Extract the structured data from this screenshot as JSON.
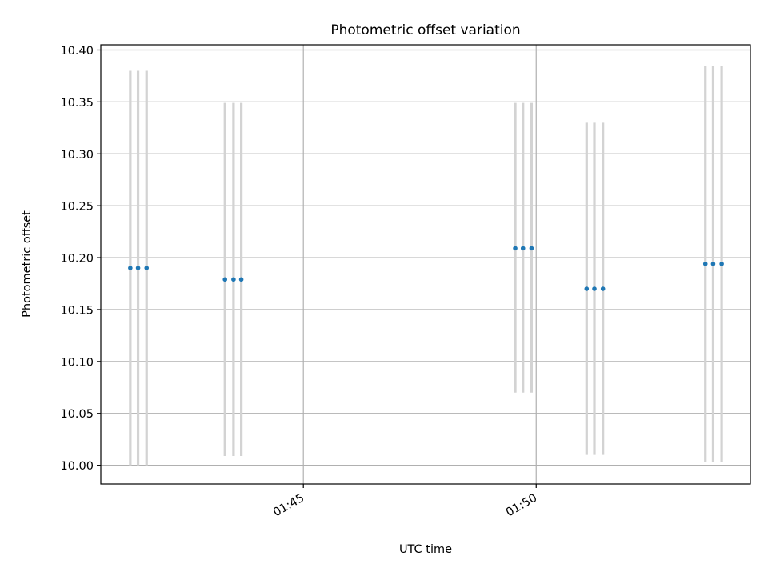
{
  "chart_data": {
    "type": "scatter",
    "title": "Photometric offset variation",
    "xlabel": "UTC time",
    "ylabel": "Photometric offset",
    "x_unit": "minutes after 01:00 UTC",
    "xlim": [
      "01:40:39",
      "01:54:36"
    ],
    "ylim": [
      9.982,
      10.405
    ],
    "x_ticks": [
      {
        "t": "01:45:00",
        "label": "01:45"
      },
      {
        "t": "01:50:00",
        "label": "01:50"
      }
    ],
    "y_ticks": [
      {
        "v": 10.0,
        "label": "10.00"
      },
      {
        "v": 10.05,
        "label": "10.05"
      },
      {
        "v": 10.1,
        "label": "10.10"
      },
      {
        "v": 10.15,
        "label": "10.15"
      },
      {
        "v": 10.2,
        "label": "10.20"
      },
      {
        "v": 10.25,
        "label": "10.25"
      },
      {
        "v": 10.3,
        "label": "10.30"
      },
      {
        "v": 10.35,
        "label": "10.35"
      },
      {
        "v": 10.4,
        "label": "10.40"
      }
    ],
    "grid": true,
    "legend": "none",
    "series": [
      {
        "marker_color": "#1f77b4",
        "errorbar_color": "#d3d3d3",
        "points": [
          {
            "t": "01:41:17",
            "y": 10.19,
            "ylow": 10.0,
            "yhigh": 10.38
          },
          {
            "t": "01:41:27",
            "y": 10.19,
            "ylow": 10.0,
            "yhigh": 10.38
          },
          {
            "t": "01:41:38",
            "y": 10.19,
            "ylow": 10.0,
            "yhigh": 10.38
          },
          {
            "t": "01:43:19",
            "y": 10.179,
            "ylow": 10.009,
            "yhigh": 10.349
          },
          {
            "t": "01:43:30",
            "y": 10.179,
            "ylow": 10.009,
            "yhigh": 10.349
          },
          {
            "t": "01:43:40",
            "y": 10.179,
            "ylow": 10.009,
            "yhigh": 10.349
          },
          {
            "t": "01:49:33",
            "y": 10.209,
            "ylow": 10.07,
            "yhigh": 10.349
          },
          {
            "t": "01:49:43",
            "y": 10.209,
            "ylow": 10.07,
            "yhigh": 10.349
          },
          {
            "t": "01:49:54",
            "y": 10.209,
            "ylow": 10.07,
            "yhigh": 10.349
          },
          {
            "t": "01:51:05",
            "y": 10.17,
            "ylow": 10.01,
            "yhigh": 10.33
          },
          {
            "t": "01:51:15",
            "y": 10.17,
            "ylow": 10.01,
            "yhigh": 10.33
          },
          {
            "t": "01:51:26",
            "y": 10.17,
            "ylow": 10.01,
            "yhigh": 10.33
          },
          {
            "t": "01:53:38",
            "y": 10.194,
            "ylow": 10.003,
            "yhigh": 10.385
          },
          {
            "t": "01:53:48",
            "y": 10.194,
            "ylow": 10.003,
            "yhigh": 10.385
          },
          {
            "t": "01:53:59",
            "y": 10.194,
            "ylow": 10.003,
            "yhigh": 10.385
          }
        ]
      }
    ]
  }
}
